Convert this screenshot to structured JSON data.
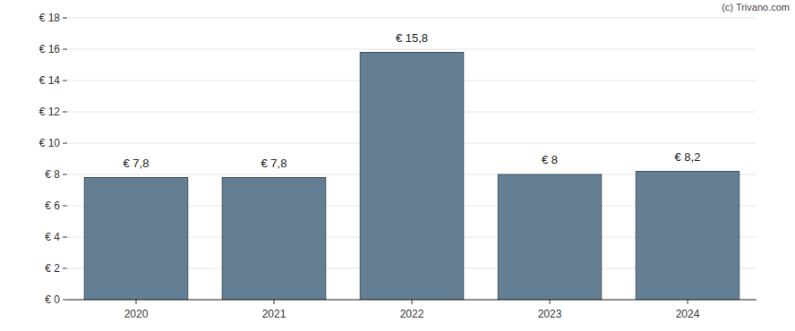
{
  "chart_data": {
    "type": "bar",
    "categories": [
      "2020",
      "2021",
      "2022",
      "2023",
      "2024"
    ],
    "values": [
      7.8,
      7.8,
      15.8,
      8,
      8.2
    ],
    "value_labels": [
      "€ 7,8",
      "€ 7,8",
      "€ 15,8",
      "€ 8",
      "€ 8,2"
    ],
    "color": "#647f94",
    "ylim": [
      0,
      18
    ],
    "yticks": [
      {
        "value": 0,
        "label": "€ 0"
      },
      {
        "value": 2,
        "label": "€ 2"
      },
      {
        "value": 4,
        "label": "€ 4"
      },
      {
        "value": 6,
        "label": "€ 6"
      },
      {
        "value": 8,
        "label": "€ 8"
      },
      {
        "value": 10,
        "label": "€ 10"
      },
      {
        "value": 12,
        "label": "€ 12"
      },
      {
        "value": 14,
        "label": "€ 14"
      },
      {
        "value": 16,
        "label": "€ 16"
      },
      {
        "value": 18,
        "label": "€ 18"
      }
    ],
    "grid": true,
    "data_labels": true,
    "annotations": [
      "(c) Trivano.com"
    ]
  }
}
